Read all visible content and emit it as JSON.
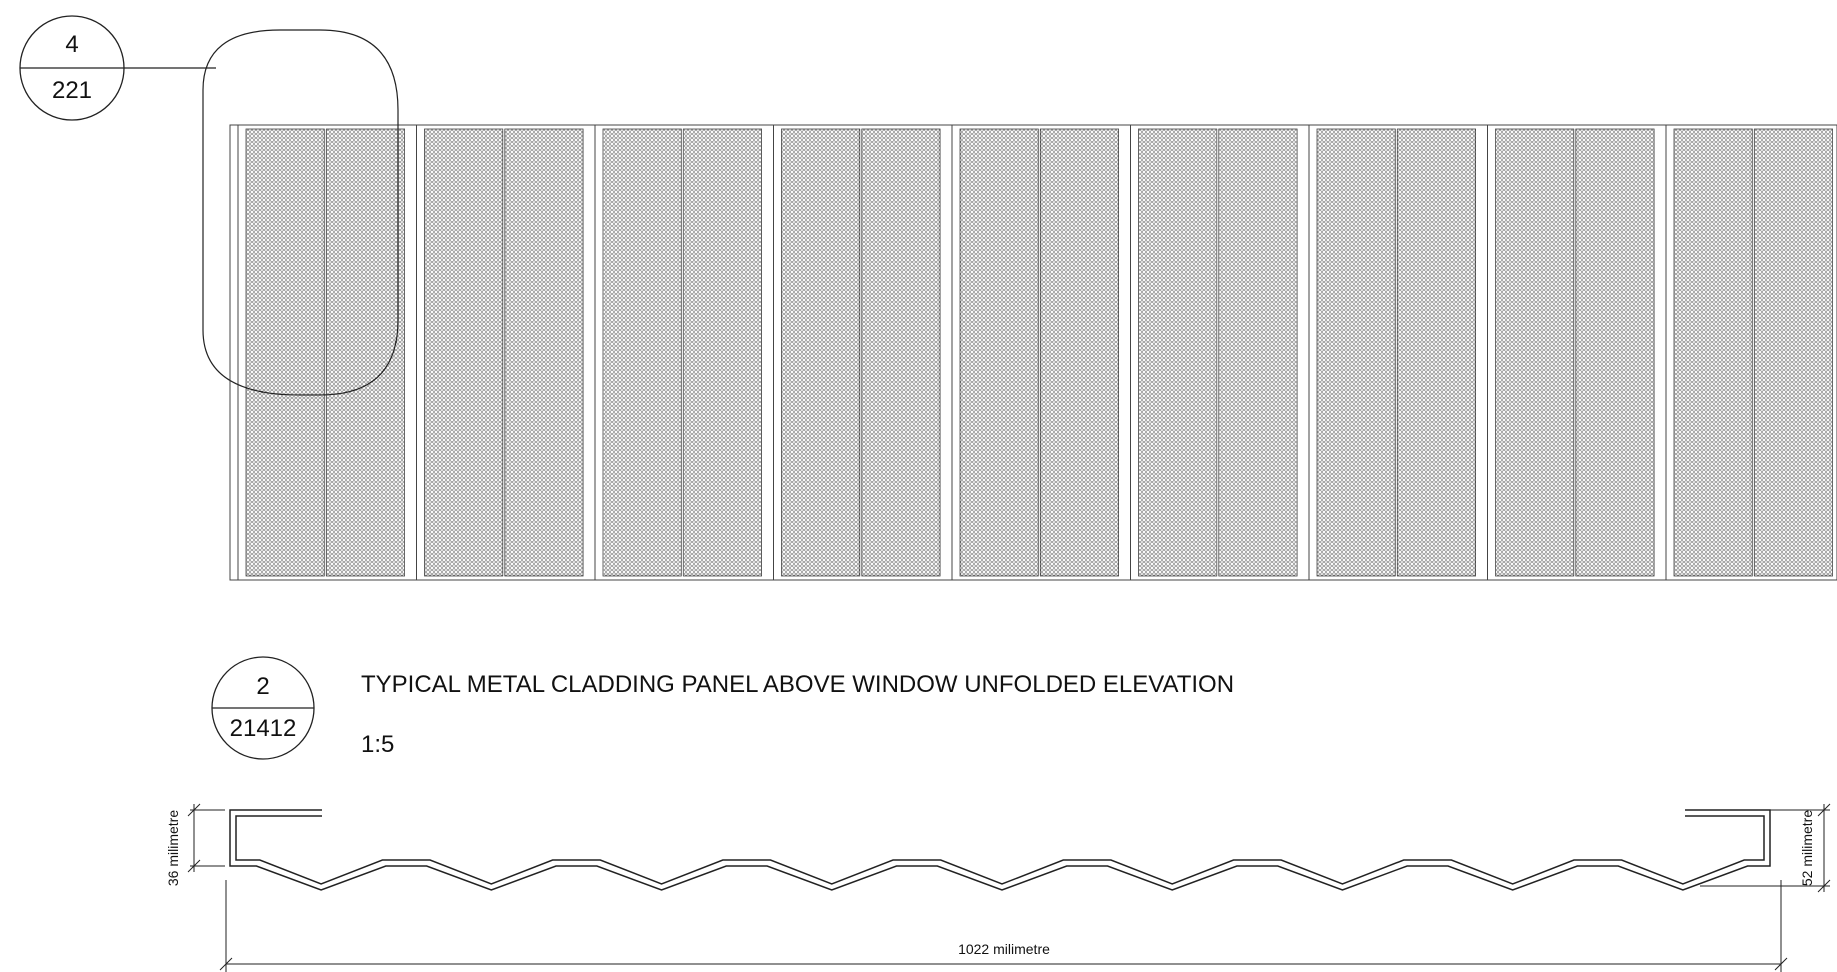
{
  "callout_top": {
    "number": "4",
    "sheet": "221"
  },
  "view_title": {
    "number": "2",
    "sheet": "21412",
    "title": "TYPICAL METAL CLADDING PANEL ABOVE WINDOW UNFOLDED ELEVATION",
    "scale": "1:5"
  },
  "dimensions": {
    "left_height": "36 milimetre",
    "right_height": "52 milimetre",
    "overall_width": "1022 milimetre"
  },
  "colors": {
    "line": "#222222",
    "panel_fill": "#ffffff",
    "hatch": "#555555"
  }
}
